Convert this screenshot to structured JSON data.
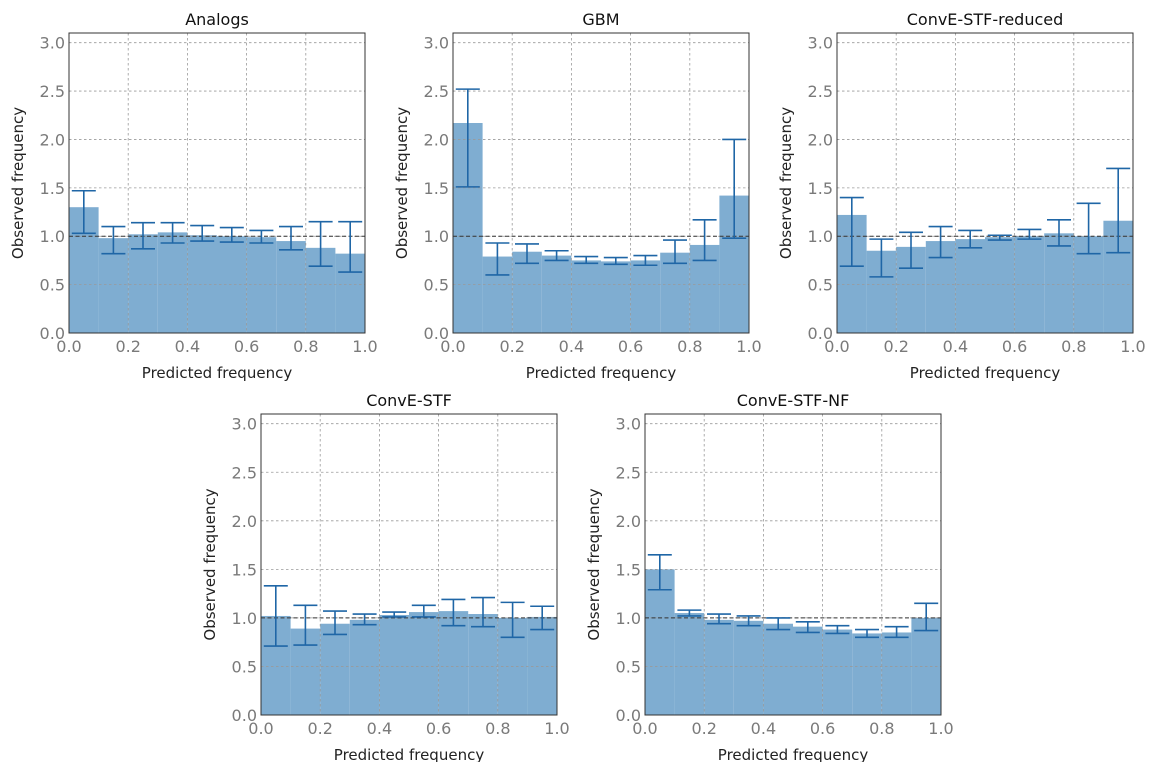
{
  "colors": {
    "bar": "#7fadd1",
    "errorbar": "#1f66a6",
    "reference_line": "#333333",
    "grid": "#9a9a9a"
  },
  "chart_data": [
    {
      "type": "bar",
      "title": "Analogs",
      "xlabel": "Predicted frequency",
      "ylabel": "Observed frequency",
      "xlim": [
        0.0,
        1.0
      ],
      "ylim": [
        0.0,
        3.1
      ],
      "xticks": [
        "0.0",
        "0.2",
        "0.4",
        "0.6",
        "0.8",
        "1.0"
      ],
      "yticks": [
        "0.0",
        "0.5",
        "1.0",
        "1.5",
        "2.0",
        "2.5",
        "3.0"
      ],
      "grid": true,
      "reference_line": 1.0,
      "bin_edges": [
        0.0,
        0.1,
        0.2,
        0.3,
        0.4,
        0.5,
        0.6,
        0.7,
        0.8,
        0.9,
        1.0
      ],
      "values": [
        1.3,
        0.98,
        1.02,
        1.04,
        1.01,
        1.0,
        0.99,
        0.95,
        0.88,
        0.82
      ],
      "err_low": [
        1.03,
        0.82,
        0.87,
        0.93,
        0.95,
        0.94,
        0.93,
        0.86,
        0.69,
        0.63
      ],
      "err_high": [
        1.47,
        1.1,
        1.14,
        1.14,
        1.11,
        1.09,
        1.06,
        1.1,
        1.15,
        1.15
      ]
    },
    {
      "type": "bar",
      "title": "GBM",
      "xlabel": "Predicted frequency",
      "ylabel": "Observed frequency",
      "xlim": [
        0.0,
        1.0
      ],
      "ylim": [
        0.0,
        3.1
      ],
      "xticks": [
        "0.0",
        "0.2",
        "0.4",
        "0.6",
        "0.8",
        "1.0"
      ],
      "yticks": [
        "0.0",
        "0.5",
        "1.0",
        "1.5",
        "2.0",
        "2.5",
        "3.0"
      ],
      "grid": true,
      "reference_line": 1.0,
      "bin_edges": [
        0.0,
        0.1,
        0.2,
        0.3,
        0.4,
        0.5,
        0.6,
        0.7,
        0.8,
        0.9,
        1.0
      ],
      "values": [
        2.17,
        0.79,
        0.84,
        0.8,
        0.75,
        0.74,
        0.75,
        0.83,
        0.91,
        1.42
      ],
      "err_low": [
        1.51,
        0.6,
        0.72,
        0.75,
        0.72,
        0.71,
        0.7,
        0.72,
        0.75,
        0.98
      ],
      "err_high": [
        2.52,
        0.93,
        0.92,
        0.85,
        0.79,
        0.78,
        0.8,
        0.96,
        1.17,
        2.0
      ]
    },
    {
      "type": "bar",
      "title": "ConvE-STF-reduced",
      "xlabel": "Predicted frequency",
      "ylabel": "Observed frequency",
      "xlim": [
        0.0,
        1.0
      ],
      "ylim": [
        0.0,
        3.1
      ],
      "xticks": [
        "0.0",
        "0.2",
        "0.4",
        "0.6",
        "0.8",
        "1.0"
      ],
      "yticks": [
        "0.0",
        "0.5",
        "1.0",
        "1.5",
        "2.0",
        "2.5",
        "3.0"
      ],
      "grid": true,
      "reference_line": 1.0,
      "bin_edges": [
        0.0,
        0.1,
        0.2,
        0.3,
        0.4,
        0.5,
        0.6,
        0.7,
        0.8,
        0.9,
        1.0
      ],
      "values": [
        1.22,
        0.85,
        0.89,
        0.95,
        0.97,
        0.99,
        1.0,
        1.03,
        1.0,
        1.16
      ],
      "err_low": [
        0.69,
        0.58,
        0.67,
        0.78,
        0.88,
        0.96,
        0.97,
        0.9,
        0.82,
        0.83
      ],
      "err_high": [
        1.4,
        0.97,
        1.04,
        1.1,
        1.06,
        1.01,
        1.07,
        1.17,
        1.34,
        1.7
      ]
    },
    {
      "type": "bar",
      "title": "ConvE-STF",
      "xlabel": "Predicted frequency",
      "ylabel": "Observed frequency",
      "xlim": [
        0.0,
        1.0
      ],
      "ylim": [
        0.0,
        3.1
      ],
      "xticks": [
        "0.0",
        "0.2",
        "0.4",
        "0.6",
        "0.8",
        "1.0"
      ],
      "yticks": [
        "0.0",
        "0.5",
        "1.0",
        "1.5",
        "2.0",
        "2.5",
        "3.0"
      ],
      "grid": true,
      "reference_line": 1.0,
      "bin_edges": [
        0.0,
        0.1,
        0.2,
        0.3,
        0.4,
        0.5,
        0.6,
        0.7,
        0.8,
        0.9,
        1.0
      ],
      "values": [
        1.02,
        0.89,
        0.94,
        0.98,
        1.03,
        1.06,
        1.07,
        1.04,
        1.0,
        1.01
      ],
      "err_low": [
        0.71,
        0.72,
        0.83,
        0.93,
        1.01,
        1.01,
        0.92,
        0.91,
        0.8,
        0.88
      ],
      "err_high": [
        1.33,
        1.13,
        1.07,
        1.04,
        1.06,
        1.13,
        1.19,
        1.21,
        1.16,
        1.12
      ]
    },
    {
      "type": "bar",
      "title": "ConvE-STF-NF",
      "xlabel": "Predicted frequency",
      "ylabel": "Observed frequency",
      "xlim": [
        0.0,
        1.0
      ],
      "ylim": [
        0.0,
        3.1
      ],
      "xticks": [
        "0.0",
        "0.2",
        "0.4",
        "0.6",
        "0.8",
        "1.0"
      ],
      "yticks": [
        "0.0",
        "0.5",
        "1.0",
        "1.5",
        "2.0",
        "2.5",
        "3.0"
      ],
      "grid": true,
      "reference_line": 1.0,
      "bin_edges": [
        0.0,
        0.1,
        0.2,
        0.3,
        0.4,
        0.5,
        0.6,
        0.7,
        0.8,
        0.9,
        1.0
      ],
      "values": [
        1.5,
        1.05,
        0.98,
        0.97,
        0.94,
        0.91,
        0.88,
        0.84,
        0.85,
        1.0
      ],
      "err_low": [
        1.29,
        1.02,
        0.94,
        0.92,
        0.88,
        0.85,
        0.84,
        0.8,
        0.8,
        0.87
      ],
      "err_high": [
        1.65,
        1.08,
        1.04,
        1.02,
        1.0,
        0.96,
        0.92,
        0.88,
        0.91,
        1.15
      ]
    }
  ]
}
